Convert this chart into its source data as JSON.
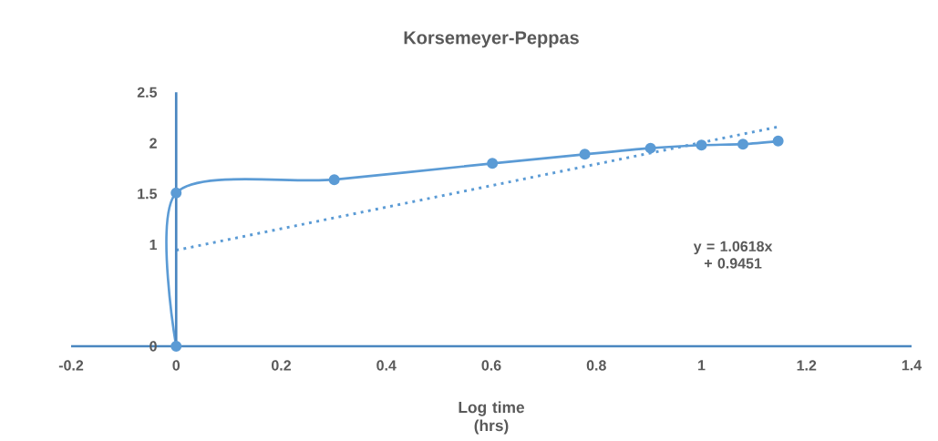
{
  "chart_data": {
    "type": "line",
    "title": "Korsemeyer-Peppas",
    "xlabel": "Log time (hrs)",
    "xlim": [
      -0.2,
      1.4
    ],
    "xticks": [
      -0.2,
      0,
      0.2,
      0.4,
      0.6,
      0.8,
      1,
      1.2,
      1.4
    ],
    "ylim": [
      0,
      2.5
    ],
    "yticks": [
      0,
      1,
      1.5,
      2,
      2.5
    ],
    "series": [
      {
        "color": "#5b9bd5",
        "x": [
          0,
          0,
          0.301,
          0.602,
          0.778,
          0.903,
          1,
          1.079,
          1.146
        ],
        "values": [
          0,
          1.51,
          1.64,
          1.8,
          1.89,
          1.95,
          1.98,
          1.99,
          2.02
        ],
        "marker": "circle",
        "line_style": "solid"
      },
      {
        "type": "line",
        "color": "#5b9bd5",
        "x": [
          0,
          1.146
        ],
        "values": [
          0.945,
          2.16
        ],
        "marker": "none",
        "line_style": "dotted"
      }
    ],
    "annotations": [
      "y = 1.0618x + 0.9451"
    ],
    "grid": false
  }
}
